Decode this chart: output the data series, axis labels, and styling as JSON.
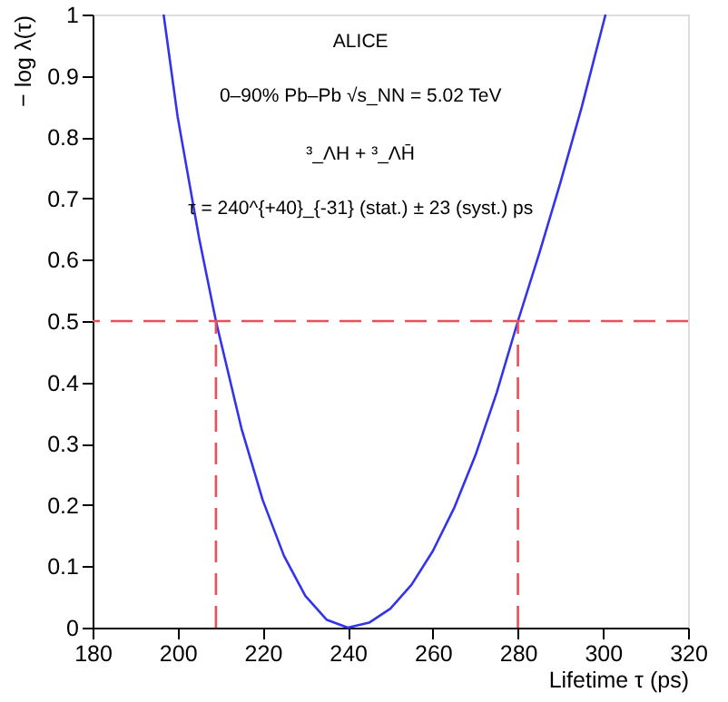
{
  "chart_data": {
    "type": "line",
    "xlabel": "Lifetime τ (ps)",
    "ylabel": "− log λ(τ)",
    "annotations": [
      "ALICE",
      "0–90% Pb–Pb √s_NN = 5.02 TeV",
      "³_ΛH + ³_ΛH̄",
      "τ = 240^{+40}_{-31} (stat.) ± 23 (syst.) ps"
    ],
    "series": [
      {
        "color": "#3333ee",
        "line_style": "solid",
        "x": [
          196.7,
          200,
          205,
          209,
          215,
          220,
          225,
          230,
          235,
          240,
          245,
          250,
          255,
          260,
          265,
          270,
          275,
          280,
          285,
          290,
          295,
          300.6
        ],
        "values": [
          1.0,
          0.833,
          0.637,
          0.5,
          0.325,
          0.208,
          0.117,
          0.052,
          0.013,
          0.0,
          0.008,
          0.031,
          0.07,
          0.125,
          0.195,
          0.281,
          0.383,
          0.5,
          0.61,
          0.726,
          0.849,
          1.0
        ]
      },
      {
        "color": "#e8505a",
        "line_style": "dashed",
        "x": [
          209,
          209
        ],
        "values": [
          0,
          0.5
        ]
      },
      {
        "color": "#e8505a",
        "line_style": "dashed",
        "x": [
          280,
          280
        ],
        "values": [
          0,
          0.5
        ]
      }
    ],
    "ref_lines": [
      {
        "axis": "y",
        "value": 0.5,
        "color": "#e8505a",
        "line_style": "dashed"
      }
    ],
    "xlim": [
      180,
      320
    ],
    "xticks": [
      180,
      200,
      220,
      240,
      260,
      280,
      300,
      320
    ],
    "ylim": [
      0,
      1
    ],
    "yticks": [
      0,
      0.1,
      0.2,
      0.3,
      0.4,
      0.5,
      0.6,
      0.7,
      0.8,
      0.9,
      1
    ],
    "grid": false,
    "marker": "none"
  }
}
